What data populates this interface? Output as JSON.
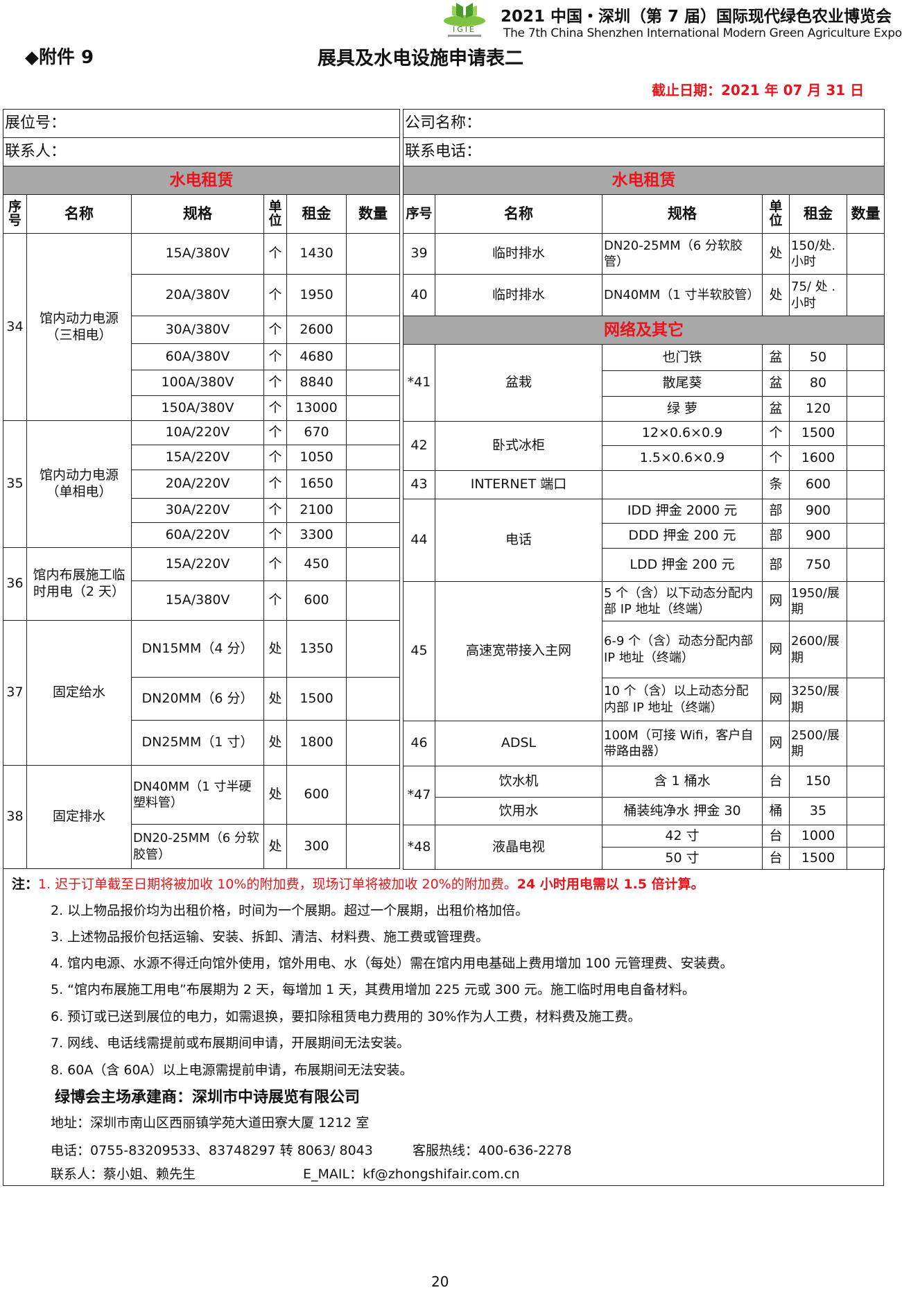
{
  "header": {
    "logo_text": "IGIE",
    "expo_title_cn": "2021 中国・深圳（第 7 届）国际现代绿色农业博览会",
    "expo_title_en": "The 7th China Shenzhen International Modern Green Agriculture Expo",
    "annex": "◆附件 9",
    "form_title": "展具及水电设施申请表二",
    "deadline": "截止日期：2021 年 07 月 31 日"
  },
  "form": {
    "booth_no_label": "展位号：",
    "company_label": "公司名称：",
    "contact_label": "联系人：",
    "phone_label": "联系电话：",
    "section_left": "水电租赁",
    "section_right": "水电租赁",
    "columns": [
      "序号",
      "名称",
      "规格",
      "单位",
      "租金",
      "数量"
    ]
  },
  "left_groups": [
    {
      "seq": "34",
      "name": "馆内动力电源（三相电）",
      "items": [
        {
          "spec": "15A/380V",
          "unit": "个",
          "rent": "1430"
        },
        {
          "spec": "20A/380V",
          "unit": "个",
          "rent": "1950"
        },
        {
          "spec": "30A/380V",
          "unit": "个",
          "rent": "2600"
        },
        {
          "spec": "60A/380V",
          "unit": "个",
          "rent": "4680"
        },
        {
          "spec": "100A/380V",
          "unit": "个",
          "rent": "8840"
        },
        {
          "spec": "150A/380V",
          "unit": "个",
          "rent": "13000"
        }
      ]
    },
    {
      "seq": "35",
      "name": "馆内动力电源（单相电）",
      "items": [
        {
          "spec": "10A/220V",
          "unit": "个",
          "rent": "670"
        },
        {
          "spec": "15A/220V",
          "unit": "个",
          "rent": "1050"
        },
        {
          "spec": "20A/220V",
          "unit": "个",
          "rent": "1650"
        },
        {
          "spec": "30A/220V",
          "unit": "个",
          "rent": "2100"
        },
        {
          "spec": "60A/220V",
          "unit": "个",
          "rent": "3300"
        }
      ]
    },
    {
      "seq": "36",
      "name": "馆内布展施工临时用电（2 天）",
      "items": [
        {
          "spec": "15A/220V",
          "unit": "个",
          "rent": "450"
        },
        {
          "spec": "15A/380V",
          "unit": "个",
          "rent": "600"
        }
      ]
    },
    {
      "seq": "37",
      "name": "固定给水",
      "items": [
        {
          "spec": "DN15MM（4 分）",
          "unit": "处",
          "rent": "1350"
        },
        {
          "spec": "DN20MM（6 分）",
          "unit": "处",
          "rent": "1500"
        },
        {
          "spec": "DN25MM（1 寸）",
          "unit": "处",
          "rent": "1800"
        }
      ]
    },
    {
      "seq": "38",
      "name": "固定排水",
      "items": [
        {
          "spec": "DN40MM（1 寸半硬塑料管）",
          "unit": "处",
          "rent": "600"
        },
        {
          "spec": "DN20-25MM（6 分软胶管）",
          "unit": "处",
          "rent": "300"
        }
      ]
    }
  ],
  "right_groups": [
    {
      "seq": "39",
      "name": "临时排水",
      "items": [
        {
          "spec": "DN20-25MM（6 分软胶管）",
          "unit": "处",
          "rent": "150/处.小时"
        }
      ]
    },
    {
      "seq": "40",
      "name": "临时排水",
      "items": [
        {
          "spec": "DN40MM（1 寸半软胶管）",
          "unit": "处",
          "rent": "75/ 处 .小时"
        }
      ]
    },
    {
      "section": "网络及其它"
    },
    {
      "seq": "*41",
      "name": "盆栽",
      "items": [
        {
          "spec": "也门铁",
          "unit": "盆",
          "rent": "50"
        },
        {
          "spec": "散尾葵",
          "unit": "盆",
          "rent": "80"
        },
        {
          "spec": "绿  萝",
          "unit": "盆",
          "rent": "120"
        }
      ]
    },
    {
      "seq": "42",
      "name": "卧式冰柜",
      "items": [
        {
          "spec": "12×0.6×0.9",
          "unit": "个",
          "rent": "1500"
        },
        {
          "spec": "1.5×0.6×0.9",
          "unit": "个",
          "rent": "1600"
        }
      ]
    },
    {
      "seq": "43",
      "name": "INTERNET 端口",
      "items": [
        {
          "spec": "",
          "unit": "条",
          "rent": "600"
        }
      ]
    },
    {
      "seq": "44",
      "name": "电话",
      "items": [
        {
          "spec": "IDD  押金 2000 元",
          "unit": "部",
          "rent": "900"
        },
        {
          "spec": "DDD  押金 200 元",
          "unit": "部",
          "rent": "900"
        },
        {
          "spec": "LDD   押金 200 元",
          "unit": "部",
          "rent": "750"
        }
      ]
    },
    {
      "seq": "45",
      "name": "高速宽带接入主网",
      "items": [
        {
          "spec": "5 个（含）以下动态分配内部 IP 地址（终端）",
          "unit": "网",
          "rent": "1950/展期"
        },
        {
          "spec": "6-9 个（含）动态分配内部 IP 地址（终端）",
          "unit": "网",
          "rent": "2600/展期"
        },
        {
          "spec": "10 个（含）以上动态分配内部 IP 地址（终端）",
          "unit": "网",
          "rent": "3250/展期"
        }
      ]
    },
    {
      "seq": "46",
      "name": "ADSL",
      "items": [
        {
          "spec": "100M（可接 Wifi，客户自带路由器）",
          "unit": "网",
          "rent": "2500/展期"
        }
      ]
    },
    {
      "seq": "*47",
      "items": [
        {
          "name": "饮水机",
          "spec": "含 1 桶水",
          "unit": "台",
          "rent": "150"
        },
        {
          "name": "饮用水",
          "spec": "桶装纯净水  押金 30",
          "unit": "桶",
          "rent": "35"
        }
      ]
    },
    {
      "seq": "*48",
      "name": "液晶电视",
      "items": [
        {
          "spec": "42 寸",
          "unit": "台",
          "rent": "1000"
        },
        {
          "spec": "50 寸",
          "unit": "台",
          "rent": "1500"
        }
      ]
    }
  ],
  "notes": {
    "prefix": "注：",
    "note1_a": "1. 迟于订单截至日期将被加收 10%的附加费，现场订单将被加收 20%的附加费。",
    "note1_b": "24 小时用电需以 1.5 倍计算。",
    "lines": [
      "2. 以上物品报价均为出租价格，时间为一个展期。超过一个展期，出租价格加倍。",
      "3. 上述物品报价包括运输、安装、拆卸、清洁、材料费、施工费或管理费。",
      "4. 馆内电源、水源不得迁向馆外使用，馆外用电、水（每处）需在馆内用电基础上费用增加 100 元管理费、安装费。",
      "5. “馆内布展施工用电”布展期为 2 天，每增加 1 天，其费用增加 225 元或 300 元。施工临时用电自备材料。",
      "6. 预订或已送到展位的电力，如需退换，要扣除租赁电力费用的 30%作为人工费，材料费及施工费。",
      "7. 网线、电话线需提前或布展期间申请，开展期间无法安装。",
      "8. 60A（含 60A）以上电源需提前申请，布展期间无法安装。"
    ],
    "contractor": "绿博会主场承建商：深圳市中诗展览有限公司",
    "address": "地址：深圳市南山区西丽镇学苑大道田寮大厦 1212 室",
    "phone": "电话：0755-83209533、83748297 转 8063/ 8043",
    "hotline": "客服热线：400-636-2278",
    "contacts": "联系人：蔡小姐、赖先生",
    "email": "E_MAIL：kf@zhongshifair.com.cn"
  },
  "page_number": "20",
  "colors": {
    "accent_red": "#e8141b",
    "section_gray": "#a9a9a9",
    "logo_green": "#6cb33f"
  }
}
